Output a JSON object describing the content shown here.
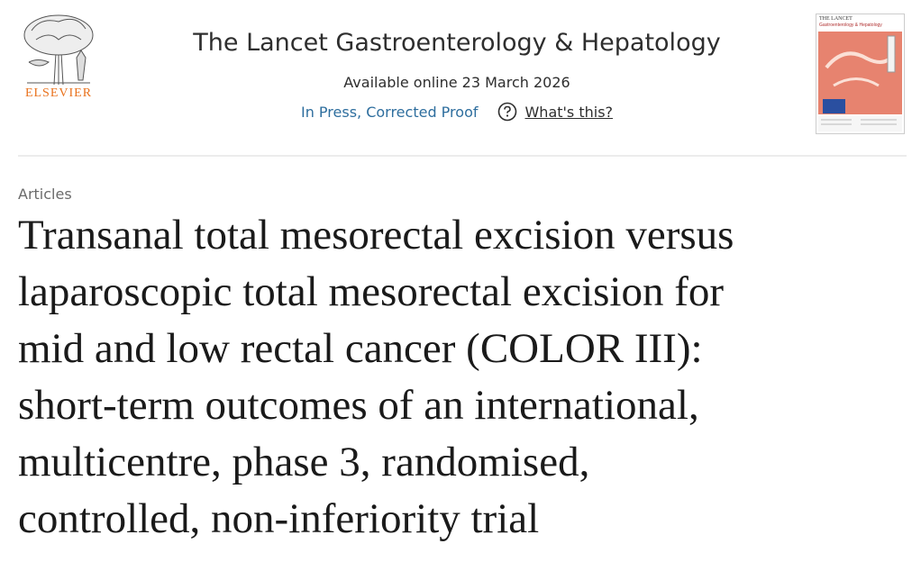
{
  "header": {
    "publisher": "ELSEVIER",
    "journal": "The Lancet Gastroenterology & Hepatology",
    "available": "Available online 23 March 2026",
    "status": "In Press, Corrected Proof",
    "help": "What's this?",
    "cover_brand": "THE LANCET",
    "cover_journal": "Gastroenterology & Hepatology"
  },
  "article": {
    "type": "Articles",
    "title_lines": [
      "Transanal total mesorectal excision versus",
      "laparoscopic total mesorectal excision for",
      "mid and low rectal cancer (COLOR III):",
      "short-term outcomes of an international,",
      "multicentre, phase 3, randomised,",
      "controlled, non-inferiority trial"
    ]
  }
}
